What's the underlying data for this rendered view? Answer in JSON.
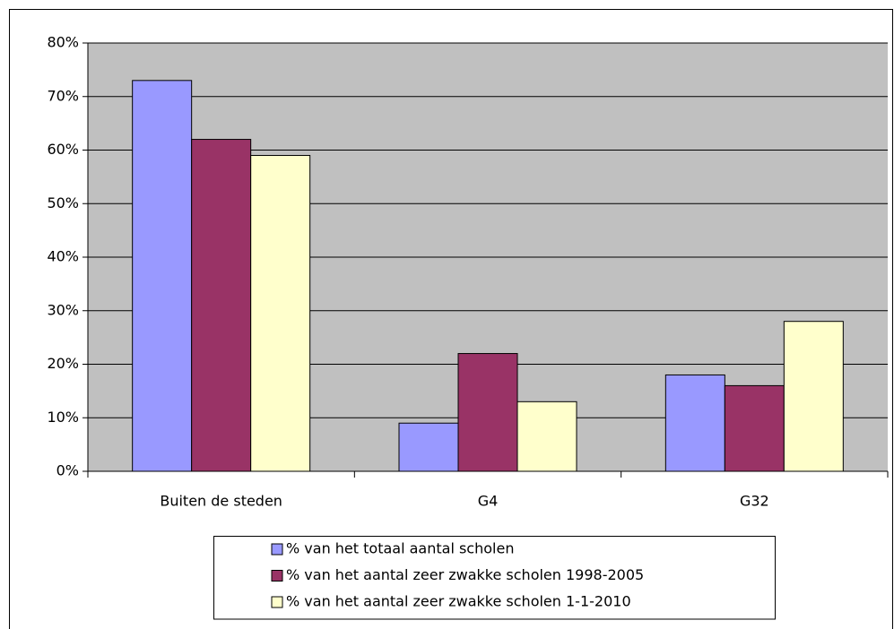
{
  "chart_data": {
    "type": "bar",
    "categories": [
      "Buiten de steden",
      "G4",
      "G32"
    ],
    "series": [
      {
        "name": "% van het totaal aantal scholen",
        "color": "#9999ff",
        "values": [
          73,
          9,
          18
        ]
      },
      {
        "name": "% van het aantal zeer zwakke scholen 1998-2005",
        "color": "#993366",
        "values": [
          62,
          22,
          16
        ]
      },
      {
        "name": "% van het aantal zeer zwakke scholen 1-1-2010",
        "color": "#ffffcc",
        "values": [
          59,
          13,
          28
        ]
      }
    ],
    "ylim": [
      0,
      80
    ],
    "yticks": [
      {
        "value": 0,
        "label": "0%"
      },
      {
        "value": 10,
        "label": "10%"
      },
      {
        "value": 20,
        "label": "20%"
      },
      {
        "value": 30,
        "label": "30%"
      },
      {
        "value": 40,
        "label": "40%"
      },
      {
        "value": 50,
        "label": "50%"
      },
      {
        "value": 60,
        "label": "60%"
      },
      {
        "value": 70,
        "label": "70%"
      },
      {
        "value": 80,
        "label": "80%"
      }
    ],
    "grid": true,
    "legend": "bottom",
    "plot_background": "#c0c0c0"
  }
}
